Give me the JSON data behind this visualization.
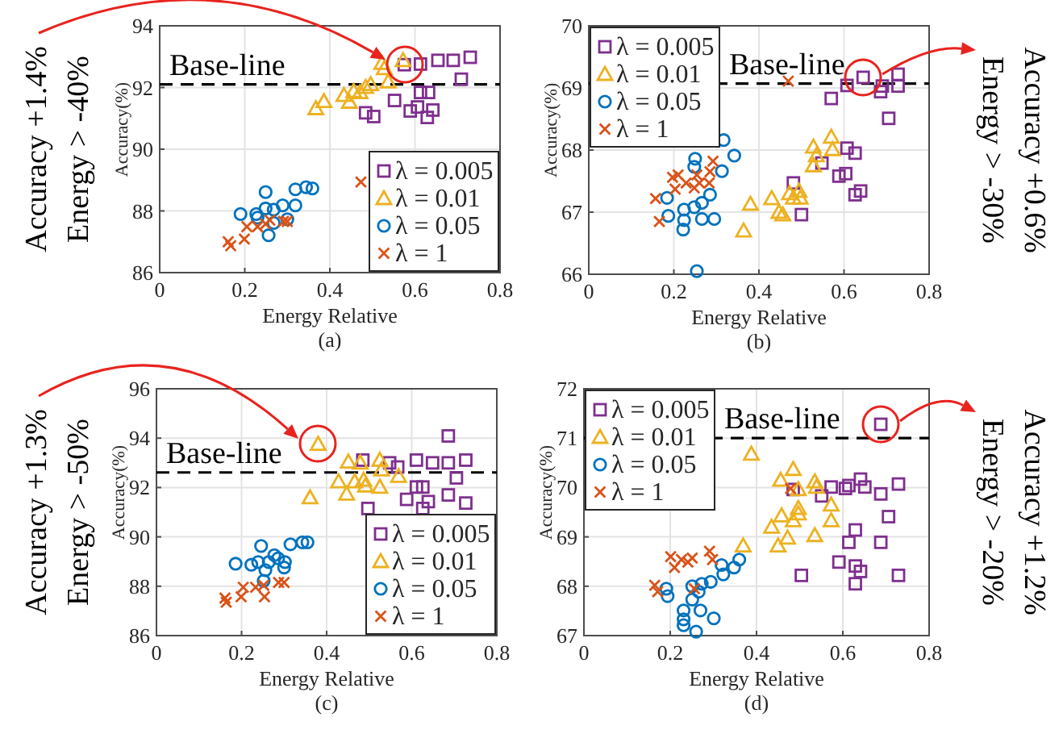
{
  "chart_data": [
    {
      "type": "scatter",
      "xlabel": "Energy Relative",
      "ylabel": "Accuracy(%)",
      "xlim": [
        0,
        0.8
      ],
      "xticks": [
        0,
        0.2,
        0.4,
        0.6,
        0.8
      ],
      "ylim": [
        86,
        94
      ],
      "yticks": [
        86,
        88,
        90,
        92,
        94
      ],
      "grid": true,
      "legend": "bottom right",
      "ref_lines": [
        {
          "axis": "y",
          "value": 92.1,
          "label": "Base-line",
          "line_style": "dashed",
          "color": "#000000"
        }
      ],
      "annotations": [
        "(a)",
        "Accuracy +1.4%",
        "Energy > -40%"
      ],
      "series": [
        {
          "name": "λ = 0.005",
          "color": "#7e2f8e",
          "marker": "square",
          "x": [
            0.575,
            0.613,
            0.654,
            0.69,
            0.73,
            0.709,
            0.613,
            0.632,
            0.552,
            0.484,
            0.503,
            0.589,
            0.606,
            0.642,
            0.629
          ],
          "values": [
            92.74,
            92.76,
            92.88,
            92.88,
            92.98,
            92.27,
            91.84,
            91.84,
            91.58,
            91.18,
            91.06,
            91.24,
            91.37,
            91.27,
            91.03
          ]
        },
        {
          "name": "λ = 0.01",
          "color": "#edb120",
          "marker": "triangle",
          "x": [
            0.572,
            0.528,
            0.537,
            0.496,
            0.484,
            0.471,
            0.456,
            0.433,
            0.446,
            0.386,
            0.367,
            0.522
          ],
          "values": [
            92.88,
            92.62,
            92.19,
            92.1,
            92.01,
            91.84,
            91.88,
            91.75,
            91.53,
            91.55,
            91.32,
            92.79
          ]
        },
        {
          "name": "λ = 0.05",
          "color": "#0072bd",
          "marker": "circle",
          "x": [
            0.19,
            0.227,
            0.23,
            0.249,
            0.249,
            0.268,
            0.289,
            0.319,
            0.319,
            0.344,
            0.359,
            0.256,
            0.3,
            0.268
          ],
          "values": [
            87.9,
            87.9,
            87.78,
            88.61,
            88.08,
            88.04,
            88.18,
            88.18,
            88.7,
            88.77,
            88.73,
            87.21,
            87.73,
            87.61
          ]
        },
        {
          "name": "λ = 1",
          "color": "#d95319",
          "marker": "cross",
          "x": [
            0.161,
            0.167,
            0.199,
            0.205,
            0.23,
            0.249,
            0.259,
            0.291,
            0.3,
            0.473
          ],
          "values": [
            87.0,
            86.87,
            87.09,
            87.49,
            87.49,
            87.58,
            87.7,
            87.66,
            87.66,
            88.94
          ]
        }
      ]
    },
    {
      "type": "scatter",
      "xlabel": "Energy Relative",
      "ylabel": "Accuracy(%)",
      "xlim": [
        0,
        0.8
      ],
      "xticks": [
        0,
        0.2,
        0.4,
        0.6,
        0.8
      ],
      "ylim": [
        66,
        70
      ],
      "yticks": [
        66,
        67,
        68,
        69,
        70
      ],
      "grid": true,
      "legend": "top left",
      "ref_lines": [
        {
          "axis": "y",
          "value": 69.07,
          "label": "Base-line",
          "line_style": "dashed",
          "color": "#000000"
        }
      ],
      "annotations": [
        "(b)",
        "Accuracy +0.6%",
        "Energy > -30%"
      ],
      "series": [
        {
          "name": "λ = 0.005",
          "color": "#7e2f8e",
          "marker": "square",
          "x": [
            0.645,
            0.607,
            0.686,
            0.69,
            0.727,
            0.727,
            0.705,
            0.57,
            0.607,
            0.626,
            0.548,
            0.588,
            0.604,
            0.626,
            0.639,
            0.481,
            0.5
          ],
          "values": [
            69.17,
            69.04,
            68.94,
            69.03,
            69.22,
            69.03,
            68.51,
            68.83,
            68.03,
            67.95,
            67.79,
            67.58,
            67.62,
            67.28,
            67.34,
            67.47,
            66.96
          ]
        },
        {
          "name": "λ = 0.01",
          "color": "#edb120",
          "marker": "triangle",
          "x": [
            0.57,
            0.528,
            0.535,
            0.528,
            0.573,
            0.472,
            0.494,
            0.481,
            0.43,
            0.38,
            0.447,
            0.456,
            0.364,
            0.497
          ],
          "values": [
            68.21,
            68.05,
            67.91,
            67.75,
            68.01,
            67.3,
            67.34,
            67.23,
            67.22,
            67.13,
            67.0,
            66.96,
            66.7,
            67.23
          ]
        },
        {
          "name": "λ = 0.05",
          "color": "#0072bd",
          "marker": "circle",
          "x": [
            0.317,
            0.342,
            0.313,
            0.25,
            0.248,
            0.184,
            0.187,
            0.224,
            0.224,
            0.222,
            0.248,
            0.266,
            0.266,
            0.295,
            0.285,
            0.254
          ],
          "values": [
            68.16,
            67.91,
            67.66,
            67.86,
            67.73,
            67.23,
            66.94,
            67.04,
            66.87,
            66.72,
            67.08,
            67.15,
            66.89,
            66.89,
            67.28,
            66.05
          ]
        },
        {
          "name": "λ = 1",
          "color": "#d95319",
          "marker": "cross",
          "x": [
            0.469,
            0.157,
            0.166,
            0.203,
            0.197,
            0.229,
            0.248,
            0.254,
            0.292,
            0.285,
            0.283,
            0.21,
            0.26
          ],
          "values": [
            69.11,
            67.22,
            66.85,
            67.37,
            67.56,
            67.47,
            67.39,
            67.6,
            67.82,
            67.65,
            67.47,
            67.6,
            67.47
          ]
        }
      ]
    },
    {
      "type": "scatter",
      "xlabel": "Energy Relative",
      "ylabel": "Accuracy(%)",
      "xlim": [
        0,
        0.8
      ],
      "xticks": [
        0,
        0.2,
        0.4,
        0.6,
        0.8
      ],
      "ylim": [
        86,
        96
      ],
      "yticks": [
        86,
        88,
        90,
        92,
        94,
        96
      ],
      "grid": true,
      "legend": "bottom right",
      "ref_lines": [
        {
          "axis": "y",
          "value": 92.61,
          "label": "Base-line",
          "line_style": "dashed",
          "color": "#000000"
        }
      ],
      "annotations": [
        "(c)",
        "Accuracy +1.3%",
        "Energy > -50%"
      ],
      "series": [
        {
          "name": "λ = 0.005",
          "color": "#7e2f8e",
          "marker": "square",
          "x": [
            0.686,
            0.485,
            0.548,
            0.567,
            0.611,
            0.649,
            0.686,
            0.727,
            0.705,
            0.611,
            0.626,
            0.588,
            0.639,
            0.626,
            0.686,
            0.727,
            0.497
          ],
          "values": [
            94.09,
            93.11,
            93.0,
            92.83,
            93.11,
            93.0,
            93.0,
            93.11,
            92.39,
            92.02,
            92.02,
            91.52,
            91.43,
            91.15,
            91.7,
            91.37,
            91.15
          ]
        },
        {
          "name": "λ = 0.01",
          "color": "#edb120",
          "marker": "triangle",
          "x": [
            0.38,
            0.451,
            0.479,
            0.525,
            0.529,
            0.569,
            0.428,
            0.466,
            0.487,
            0.491,
            0.447,
            0.525,
            0.361
          ],
          "values": [
            93.76,
            93.04,
            93.0,
            93.11,
            92.72,
            92.46,
            92.24,
            92.24,
            92.3,
            92.07,
            91.74,
            92.02,
            91.59
          ]
        },
        {
          "name": "λ = 0.05",
          "color": "#0072bd",
          "marker": "circle",
          "x": [
            0.246,
            0.277,
            0.315,
            0.343,
            0.355,
            0.186,
            0.223,
            0.239,
            0.264,
            0.286,
            0.3,
            0.256,
            0.252,
            0.302
          ],
          "values": [
            89.63,
            89.26,
            89.7,
            89.78,
            89.78,
            88.91,
            88.87,
            88.98,
            88.98,
            89.13,
            88.76,
            88.65,
            88.22,
            88.98
          ]
        },
        {
          "name": "λ = 1",
          "color": "#d95319",
          "marker": "cross",
          "x": [
            0.161,
            0.164,
            0.199,
            0.204,
            0.233,
            0.252,
            0.254,
            0.287,
            0.3
          ],
          "values": [
            87.52,
            87.35,
            87.57,
            87.96,
            87.96,
            88.04,
            87.57,
            88.15,
            88.15
          ]
        }
      ]
    },
    {
      "type": "scatter",
      "xlabel": "Energy Relative",
      "ylabel": "Accuracy(%)",
      "xlim": [
        0,
        0.8
      ],
      "xticks": [
        0,
        0.2,
        0.4,
        0.6,
        0.8
      ],
      "ylim": [
        67,
        72
      ],
      "yticks": [
        67,
        68,
        69,
        70,
        71,
        72
      ],
      "grid": true,
      "legend": "top left",
      "ref_lines": [
        {
          "axis": "y",
          "value": 71.0,
          "label": "Base-line",
          "line_style": "dashed",
          "color": "#000000"
        }
      ],
      "annotations": [
        "(d)",
        "Accuracy +1.2%",
        "Energy > -20%"
      ],
      "series": [
        {
          "name": "λ = 0.005",
          "color": "#7e2f8e",
          "marker": "square",
          "x": [
            0.688,
            0.485,
            0.551,
            0.573,
            0.606,
            0.614,
            0.641,
            0.651,
            0.688,
            0.729,
            0.706,
            0.629,
            0.614,
            0.688,
            0.591,
            0.629,
            0.641,
            0.629,
            0.504,
            0.729
          ],
          "values": [
            71.28,
            69.96,
            69.83,
            70.01,
            69.98,
            70.04,
            70.17,
            70.01,
            69.87,
            70.07,
            69.41,
            69.14,
            68.89,
            68.89,
            68.49,
            68.41,
            68.3,
            68.05,
            68.22,
            68.22
          ]
        },
        {
          "name": "λ = 0.01",
          "color": "#edb120",
          "marker": "triangle",
          "x": [
            0.388,
            0.485,
            0.456,
            0.535,
            0.539,
            0.497,
            0.573,
            0.573,
            0.497,
            0.497,
            0.458,
            0.485,
            0.435,
            0.535,
            0.472,
            0.45,
            0.369
          ],
          "values": [
            70.68,
            70.37,
            70.15,
            70.12,
            70.01,
            69.96,
            69.65,
            69.33,
            69.58,
            69.47,
            69.43,
            69.33,
            69.2,
            69.03,
            68.98,
            68.82,
            68.82
          ]
        },
        {
          "name": "λ = 0.05",
          "color": "#0072bd",
          "marker": "circle",
          "x": [
            0.36,
            0.348,
            0.319,
            0.323,
            0.294,
            0.273,
            0.266,
            0.251,
            0.191,
            0.194,
            0.231,
            0.231,
            0.231,
            0.27,
            0.301,
            0.26,
            0.251
          ],
          "values": [
            68.54,
            68.38,
            68.43,
            68.24,
            68.09,
            68.05,
            67.89,
            68.0,
            67.95,
            67.8,
            67.51,
            67.33,
            67.21,
            67.51,
            67.35,
            67.08,
            67.73
          ]
        },
        {
          "name": "λ = 1",
          "color": "#d95319",
          "marker": "cross",
          "x": [
            0.164,
            0.171,
            0.201,
            0.21,
            0.226,
            0.241,
            0.251,
            0.291,
            0.298,
            0.256,
            0.479
          ],
          "values": [
            68.02,
            67.89,
            68.6,
            68.38,
            68.54,
            68.49,
            68.57,
            68.71,
            68.54,
            67.95,
            69.98
          ]
        }
      ]
    }
  ]
}
